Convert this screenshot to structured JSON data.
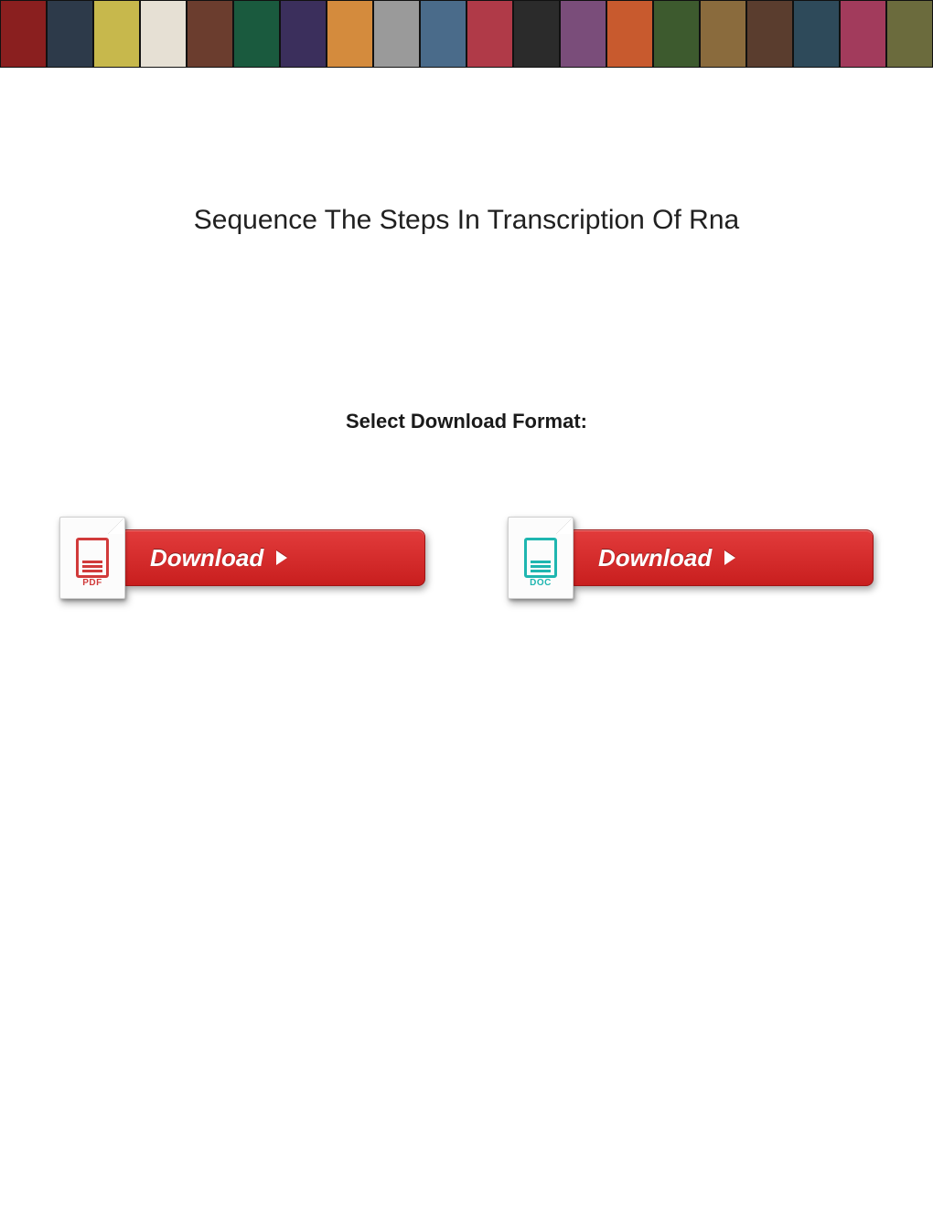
{
  "page": {
    "title": "Sequence The Steps In Transcription Of Rna",
    "subtitle": "Select Download Format:",
    "title_fontsize": 30,
    "title_color": "#202020",
    "subtitle_fontsize": 22,
    "subtitle_color": "#1a1a1a",
    "background_color": "#ffffff"
  },
  "banner": {
    "thumb_count": 20,
    "thumb_width": 51,
    "thumb_height": 74,
    "colors": [
      "#8a1f1f",
      "#2d3a4a",
      "#c7b84c",
      "#e6e0d4",
      "#6b3d2e",
      "#1a5a3e",
      "#3b2f5c",
      "#d48b3d",
      "#9a9a9a",
      "#4a6b8a",
      "#b03a48",
      "#2b2b2b",
      "#7a4d7a",
      "#c85a2e",
      "#3d5a2e",
      "#8a6b3d",
      "#5a3d2e",
      "#2e4a5a",
      "#a23b5c",
      "#6b6b3d"
    ]
  },
  "buttons": {
    "pdf": {
      "file_label": "PDF",
      "button_label": "Download",
      "icon_color": "#d13a3a",
      "pill_gradient_top": "#e23b3b",
      "pill_gradient_bottom": "#c81e1e",
      "pill_border": "#9e1414",
      "text_color": "#ffffff"
    },
    "doc": {
      "file_label": "DOC",
      "button_label": "Download",
      "icon_color": "#1fb6b0",
      "pill_gradient_top": "#e23b3b",
      "pill_gradient_bottom": "#c81e1e",
      "pill_border": "#9e1414",
      "text_color": "#ffffff"
    }
  }
}
